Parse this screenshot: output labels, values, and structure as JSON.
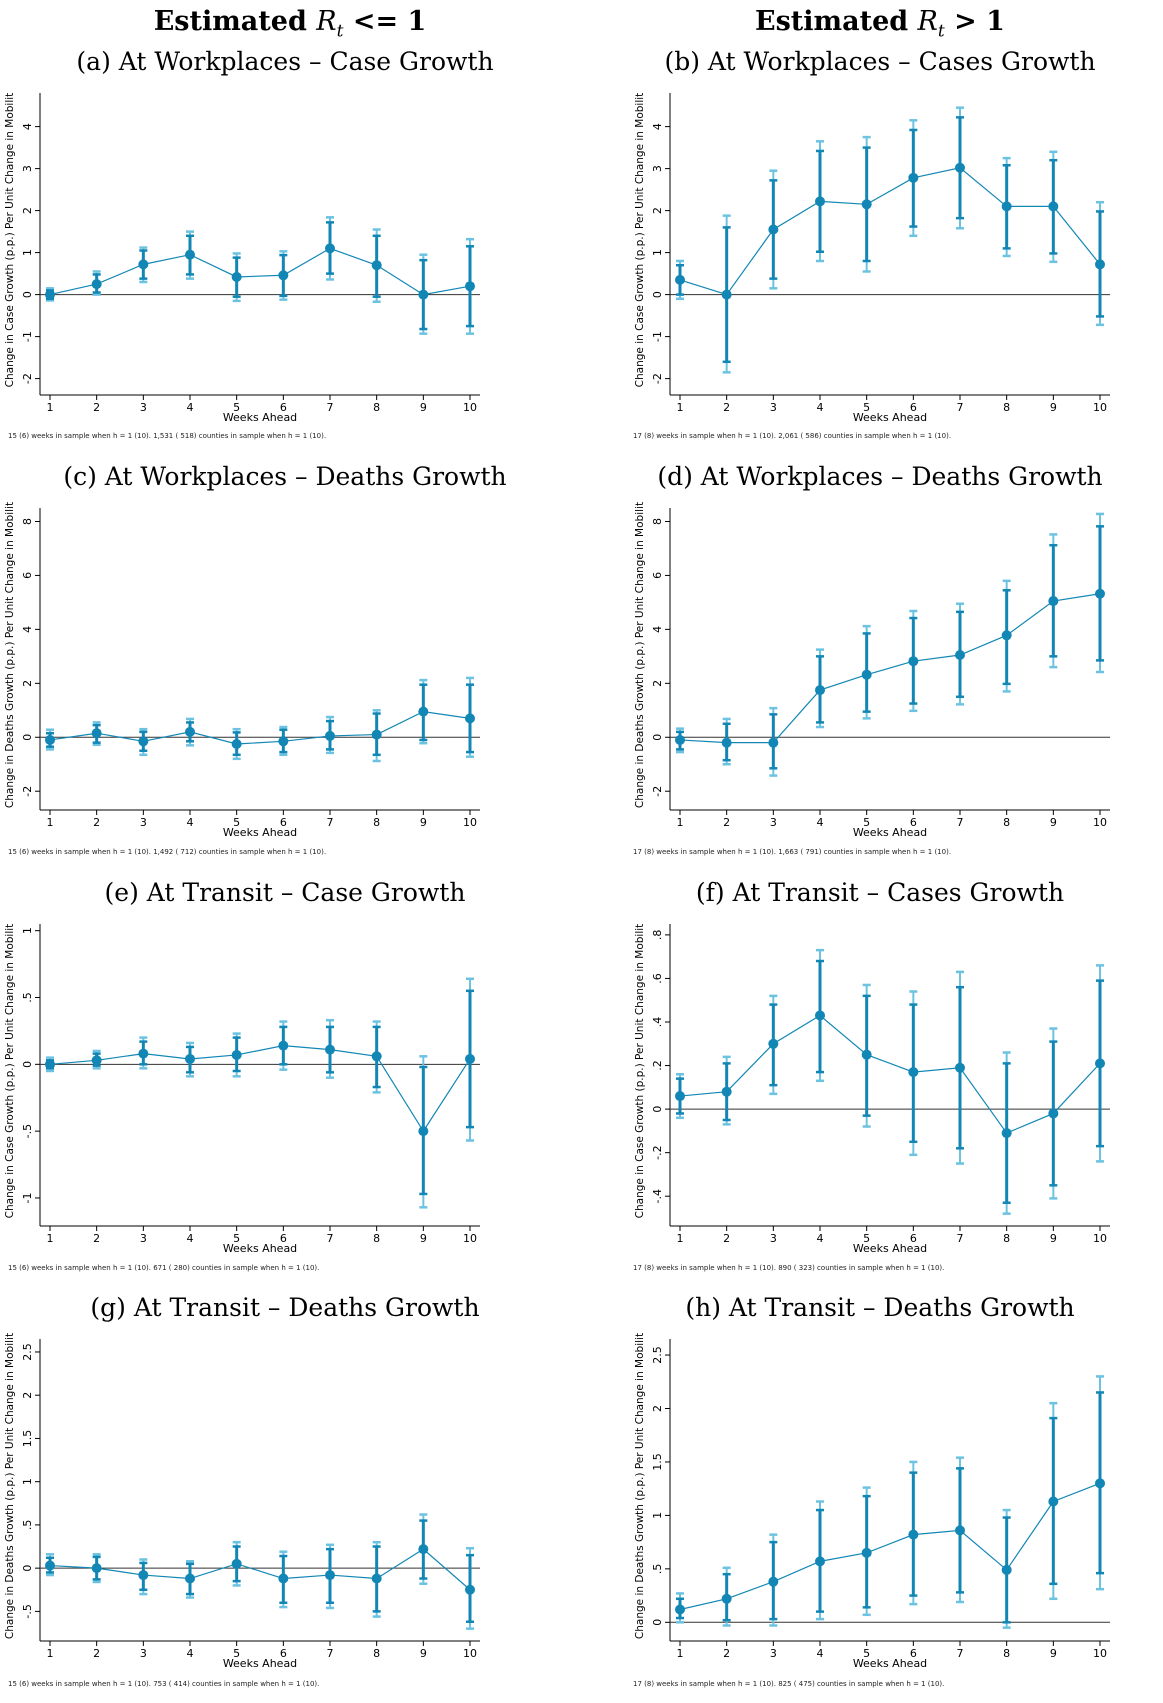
{
  "headings": {
    "left": {
      "prefix": "Estimated ",
      "sym": "R",
      "sub": "t",
      "rel": " <= 1"
    },
    "right": {
      "prefix": "Estimated ",
      "sym": "R",
      "sub": "t",
      "rel": " > 1"
    }
  },
  "colors": {
    "point": "#1287b5",
    "ci_outer": "#6cc3e1",
    "ci_inner": "#1287b5",
    "line": "#1287b5",
    "axis": "#000000"
  },
  "chart_data": [
    {
      "type": "line",
      "caption": "(a) At Workplaces – Case Growth",
      "xlabel": "Weeks Ahead",
      "ylabel": "Change in Case Growth (p.p.) Per Unit Change in Mobilit",
      "note": "15 (6) weeks in sample when h = 1 (10). 1,531 (  518) counties in sample when h = 1 (10).",
      "x": [
        1,
        2,
        3,
        4,
        5,
        6,
        7,
        8,
        9,
        10
      ],
      "y": [
        0.0,
        0.25,
        0.72,
        0.95,
        0.42,
        0.46,
        1.1,
        0.7,
        0.0,
        0.2
      ],
      "ci_inner": [
        [
          -0.1,
          0.1
        ],
        [
          0.05,
          0.48
        ],
        [
          0.38,
          1.05
        ],
        [
          0.48,
          1.4
        ],
        [
          -0.05,
          0.88
        ],
        [
          -0.03,
          0.94
        ],
        [
          0.5,
          1.72
        ],
        [
          -0.05,
          1.4
        ],
        [
          -0.82,
          0.82
        ],
        [
          -0.75,
          1.15
        ]
      ],
      "ci_outer": [
        [
          -0.14,
          0.15
        ],
        [
          0.0,
          0.55
        ],
        [
          0.3,
          1.12
        ],
        [
          0.38,
          1.5
        ],
        [
          -0.15,
          0.98
        ],
        [
          -0.12,
          1.03
        ],
        [
          0.36,
          1.84
        ],
        [
          -0.17,
          1.55
        ],
        [
          -0.93,
          0.95
        ],
        [
          -0.93,
          1.32
        ]
      ],
      "ylim": [
        -2.2,
        4.8
      ],
      "yticks": [
        -2,
        -1,
        0,
        1,
        2,
        3,
        4
      ],
      "yticklabels": [
        "-2",
        "-1",
        "0",
        "1",
        "2",
        "3",
        "4"
      ]
    },
    {
      "type": "line",
      "caption": "(b) At Workplaces – Cases Growth",
      "xlabel": "Weeks Ahead",
      "ylabel": "Change in Case Growth (p.p.) Per Unit Change in Mobilit",
      "note": "17 (8) weeks in sample when h = 1 (10). 2,061 (  586) counties in sample when h = 1 (10).",
      "x": [
        1,
        2,
        3,
        4,
        5,
        6,
        7,
        8,
        9,
        10
      ],
      "y": [
        0.35,
        0.0,
        1.55,
        2.22,
        2.15,
        2.78,
        3.02,
        2.1,
        2.1,
        0.72
      ],
      "ci_inner": [
        [
          0.0,
          0.7
        ],
        [
          -1.6,
          1.6
        ],
        [
          0.38,
          2.72
        ],
        [
          1.02,
          3.42
        ],
        [
          0.8,
          3.5
        ],
        [
          1.62,
          3.92
        ],
        [
          1.82,
          4.22
        ],
        [
          1.1,
          3.08
        ],
        [
          0.98,
          3.2
        ],
        [
          -0.52,
          1.98
        ]
      ],
      "ci_outer": [
        [
          -0.1,
          0.8
        ],
        [
          -1.85,
          1.88
        ],
        [
          0.15,
          2.95
        ],
        [
          0.8,
          3.65
        ],
        [
          0.55,
          3.75
        ],
        [
          1.4,
          4.15
        ],
        [
          1.58,
          4.45
        ],
        [
          0.92,
          3.25
        ],
        [
          0.78,
          3.4
        ],
        [
          -0.72,
          2.2
        ]
      ],
      "ylim": [
        -2.2,
        4.8
      ],
      "yticks": [
        -2,
        -1,
        0,
        1,
        2,
        3,
        4
      ],
      "yticklabels": [
        "-2",
        "-1",
        "0",
        "1",
        "2",
        "3",
        "4"
      ]
    },
    {
      "type": "line",
      "caption": "(c) At Workplaces – Deaths Growth",
      "xlabel": "Weeks Ahead",
      "ylabel": "Change in Deaths Growth (p.p.) Per Unit Change in Mobilit",
      "note": "15 (6) weeks in sample when h = 1 (10). 1,492 (  712) counties in sample when h = 1 (10).",
      "x": [
        1,
        2,
        3,
        4,
        5,
        6,
        7,
        8,
        9,
        10
      ],
      "y": [
        -0.1,
        0.15,
        -0.15,
        0.2,
        -0.25,
        -0.15,
        0.05,
        0.1,
        0.95,
        0.7
      ],
      "ci_inner": [
        [
          -0.35,
          0.15
        ],
        [
          -0.2,
          0.45
        ],
        [
          -0.5,
          0.2
        ],
        [
          -0.15,
          0.55
        ],
        [
          -0.65,
          0.18
        ],
        [
          -0.55,
          0.28
        ],
        [
          -0.45,
          0.6
        ],
        [
          -0.65,
          0.88
        ],
        [
          -0.1,
          1.95
        ],
        [
          -0.55,
          1.95
        ]
      ],
      "ci_outer": [
        [
          -0.45,
          0.28
        ],
        [
          -0.28,
          0.55
        ],
        [
          -0.65,
          0.3
        ],
        [
          -0.3,
          0.68
        ],
        [
          -0.8,
          0.3
        ],
        [
          -0.65,
          0.38
        ],
        [
          -0.58,
          0.75
        ],
        [
          -0.88,
          1.0
        ],
        [
          -0.22,
          2.12
        ],
        [
          -0.72,
          2.2
        ]
      ],
      "ylim": [
        -2.4,
        8.5
      ],
      "yticks": [
        -2,
        0,
        2,
        4,
        6,
        8
      ],
      "yticklabels": [
        "-2",
        "0",
        "2",
        "4",
        "6",
        "8"
      ]
    },
    {
      "type": "line",
      "caption": "(d) At Workplaces – Deaths Growth",
      "xlabel": "Weeks Ahead",
      "ylabel": "Change in Deaths Growth (p.p.) Per Unit Change in Mobilit",
      "note": "17 (8) weeks in sample when h = 1 (10). 1,663 (  791) counties in sample when h = 1 (10).",
      "x": [
        1,
        2,
        3,
        4,
        5,
        6,
        7,
        8,
        9,
        10
      ],
      "y": [
        -0.1,
        -0.2,
        -0.2,
        1.75,
        2.32,
        2.82,
        3.05,
        3.78,
        5.05,
        5.32
      ],
      "ci_inner": [
        [
          -0.45,
          0.2
        ],
        [
          -0.85,
          0.5
        ],
        [
          -1.15,
          0.85
        ],
        [
          0.55,
          3.0
        ],
        [
          0.95,
          3.85
        ],
        [
          1.25,
          4.42
        ],
        [
          1.5,
          4.65
        ],
        [
          1.98,
          5.45
        ],
        [
          3.0,
          7.12
        ],
        [
          2.85,
          7.82
        ]
      ],
      "ci_outer": [
        [
          -0.55,
          0.32
        ],
        [
          -1.0,
          0.68
        ],
        [
          -1.42,
          1.08
        ],
        [
          0.38,
          3.25
        ],
        [
          0.7,
          4.12
        ],
        [
          0.98,
          4.68
        ],
        [
          1.22,
          4.95
        ],
        [
          1.7,
          5.8
        ],
        [
          2.6,
          7.52
        ],
        [
          2.42,
          8.28
        ]
      ],
      "ylim": [
        -2.4,
        8.5
      ],
      "yticks": [
        -2,
        0,
        2,
        4,
        6,
        8
      ],
      "yticklabels": [
        "-2",
        "0",
        "2",
        "4",
        "6",
        "8"
      ]
    },
    {
      "type": "line",
      "caption": "(e) At Transit – Case Growth",
      "xlabel": "Weeks Ahead",
      "ylabel": "Change in Case Growth (p.p.) Per Unit Change in Mobilit",
      "note": "15 (6) weeks in sample when h = 1 (10).   671 (  280) counties in sample when h = 1 (10).",
      "x": [
        1,
        2,
        3,
        4,
        5,
        6,
        7,
        8,
        9,
        10
      ],
      "y": [
        0.0,
        0.03,
        0.08,
        0.04,
        0.07,
        0.14,
        0.11,
        0.06,
        -0.5,
        0.04
      ],
      "ci_inner": [
        [
          -0.03,
          0.03
        ],
        [
          -0.01,
          0.08
        ],
        [
          0.0,
          0.17
        ],
        [
          -0.06,
          0.13
        ],
        [
          -0.05,
          0.2
        ],
        [
          0.0,
          0.28
        ],
        [
          -0.06,
          0.28
        ],
        [
          -0.17,
          0.28
        ],
        [
          -0.97,
          -0.02
        ],
        [
          -0.47,
          0.55
        ]
      ],
      "ci_outer": [
        [
          -0.05,
          0.05
        ],
        [
          -0.03,
          0.1
        ],
        [
          -0.03,
          0.2
        ],
        [
          -0.09,
          0.16
        ],
        [
          -0.09,
          0.23
        ],
        [
          -0.04,
          0.32
        ],
        [
          -0.1,
          0.33
        ],
        [
          -0.21,
          0.32
        ],
        [
          -1.07,
          0.06
        ],
        [
          -0.57,
          0.64
        ]
      ],
      "ylim": [
        -1.15,
        1.05
      ],
      "yticks": [
        -1,
        -0.5,
        0,
        0.5,
        1
      ],
      "yticklabels": [
        "-1",
        "-.5",
        "0",
        ".5",
        "1"
      ]
    },
    {
      "type": "line",
      "caption": "(f) At Transit – Cases Growth",
      "xlabel": "Weeks Ahead",
      "ylabel": "Change in Case Growth (p.p.) Per Unit Change in Mobilit",
      "note": "17 (8) weeks in sample when h = 1 (10).   890 (  323) counties in sample when h = 1 (10).",
      "x": [
        1,
        2,
        3,
        4,
        5,
        6,
        7,
        8,
        9,
        10
      ],
      "y": [
        0.06,
        0.08,
        0.3,
        0.43,
        0.25,
        0.17,
        0.19,
        -0.11,
        -0.02,
        0.21
      ],
      "ci_inner": [
        [
          -0.02,
          0.14
        ],
        [
          -0.05,
          0.21
        ],
        [
          0.11,
          0.48
        ],
        [
          0.17,
          0.68
        ],
        [
          -0.03,
          0.52
        ],
        [
          -0.15,
          0.48
        ],
        [
          -0.18,
          0.56
        ],
        [
          -0.43,
          0.21
        ],
        [
          -0.35,
          0.31
        ],
        [
          -0.17,
          0.59
        ]
      ],
      "ci_outer": [
        [
          -0.04,
          0.16
        ],
        [
          -0.07,
          0.24
        ],
        [
          0.07,
          0.52
        ],
        [
          0.13,
          0.73
        ],
        [
          -0.08,
          0.57
        ],
        [
          -0.21,
          0.54
        ],
        [
          -0.25,
          0.63
        ],
        [
          -0.48,
          0.26
        ],
        [
          -0.41,
          0.37
        ],
        [
          -0.24,
          0.66
        ]
      ],
      "ylim": [
        -0.5,
        0.85
      ],
      "yticks": [
        -0.4,
        -0.2,
        0,
        0.2,
        0.4,
        0.6,
        0.8
      ],
      "yticklabels": [
        "-.4",
        "-.2",
        "0",
        ".2",
        ".4",
        ".6",
        ".8"
      ]
    },
    {
      "type": "line",
      "caption": "(g) At Transit – Deaths Growth",
      "xlabel": "Weeks Ahead",
      "ylabel": "Change in Deaths Growth (p.p.) Per Unit Change in Mobilit",
      "note": "15 (6) weeks in sample when h = 1 (10).   753 (  414) counties in sample when h = 1 (10).",
      "x": [
        1,
        2,
        3,
        4,
        5,
        6,
        7,
        8,
        9,
        10
      ],
      "y": [
        0.03,
        0.0,
        -0.08,
        -0.12,
        0.05,
        -0.12,
        -0.08,
        -0.12,
        0.22,
        -0.25
      ],
      "ci_inner": [
        [
          -0.05,
          0.12
        ],
        [
          -0.13,
          0.13
        ],
        [
          -0.25,
          0.06
        ],
        [
          -0.3,
          0.05
        ],
        [
          -0.15,
          0.25
        ],
        [
          -0.4,
          0.14
        ],
        [
          -0.4,
          0.22
        ],
        [
          -0.5,
          0.25
        ],
        [
          -0.12,
          0.55
        ],
        [
          -0.62,
          0.15
        ]
      ],
      "ci_outer": [
        [
          -0.08,
          0.16
        ],
        [
          -0.16,
          0.16
        ],
        [
          -0.3,
          0.1
        ],
        [
          -0.34,
          0.08
        ],
        [
          -0.2,
          0.3
        ],
        [
          -0.45,
          0.19
        ],
        [
          -0.46,
          0.27
        ],
        [
          -0.56,
          0.3
        ],
        [
          -0.18,
          0.62
        ],
        [
          -0.7,
          0.23
        ]
      ],
      "ylim": [
        -0.75,
        2.65
      ],
      "yticks": [
        -0.5,
        0,
        0.5,
        1,
        1.5,
        2,
        2.5
      ],
      "yticklabels": [
        "-.5",
        "0",
        ".5",
        "1",
        "1.5",
        "2",
        "2.5"
      ]
    },
    {
      "type": "line",
      "caption": "(h) At Transit – Deaths Growth",
      "xlabel": "Weeks Ahead",
      "ylabel": "Change in Deaths Growth (p.p.) Per Unit Change in Mobilit",
      "note": "17 (8) weeks in sample when h = 1 (10).   825 (  475) counties in sample when h = 1 (10).",
      "x": [
        1,
        2,
        3,
        4,
        5,
        6,
        7,
        8,
        9,
        10
      ],
      "y": [
        0.12,
        0.22,
        0.38,
        0.57,
        0.65,
        0.82,
        0.86,
        0.49,
        1.13,
        1.3
      ],
      "ci_inner": [
        [
          0.04,
          0.22
        ],
        [
          0.02,
          0.45
        ],
        [
          0.03,
          0.75
        ],
        [
          0.1,
          1.05
        ],
        [
          0.14,
          1.18
        ],
        [
          0.25,
          1.4
        ],
        [
          0.28,
          1.44
        ],
        [
          0.0,
          0.98
        ],
        [
          0.36,
          1.91
        ],
        [
          0.46,
          2.15
        ]
      ],
      "ci_outer": [
        [
          0.0,
          0.27
        ],
        [
          -0.03,
          0.51
        ],
        [
          -0.03,
          0.82
        ],
        [
          0.03,
          1.13
        ],
        [
          0.07,
          1.26
        ],
        [
          0.17,
          1.5
        ],
        [
          0.19,
          1.54
        ],
        [
          -0.05,
          1.05
        ],
        [
          0.22,
          2.05
        ],
        [
          0.31,
          2.3
        ]
      ],
      "ylim": [
        -0.1,
        2.65
      ],
      "yticks": [
        0,
        0.5,
        1,
        1.5,
        2,
        2.5
      ],
      "yticklabels": [
        "0",
        ".5",
        "1",
        "1.5",
        "2",
        "2.5"
      ]
    }
  ]
}
